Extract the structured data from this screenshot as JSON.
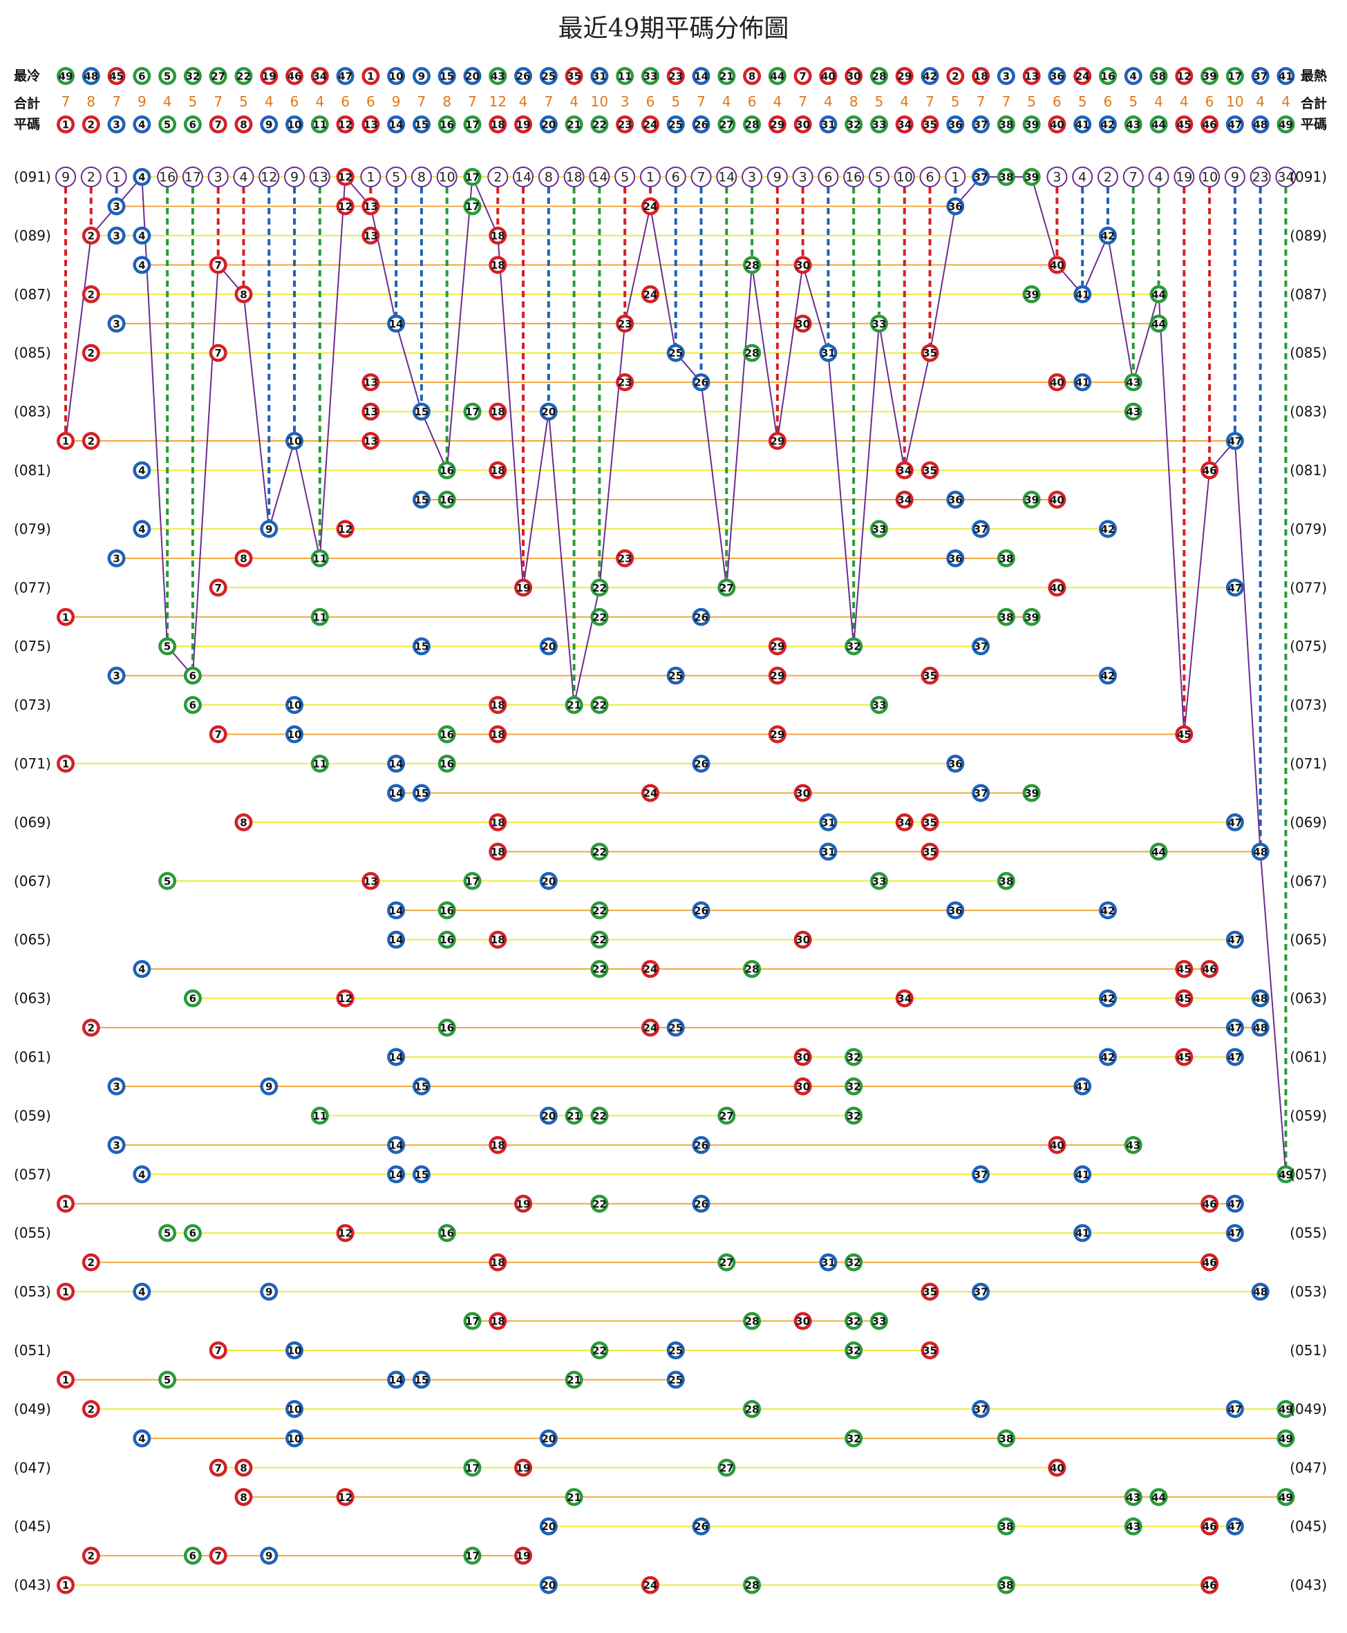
{
  "title": "最近49期平碼分佈圖",
  "labels": {
    "coldest": "最冷",
    "hottest": "最熱",
    "total": "合計",
    "regular": "平碼"
  },
  "colors": {
    "red": "#d61f26",
    "blue": "#1e62b8",
    "green": "#2a9a3a",
    "purple": "#6a2c91",
    "count_orange": "#e07818",
    "line_yellow": "#ecec3c",
    "line_orange": "#f2a83a"
  },
  "chart_data": {
    "type": "table",
    "hot_cold_order": [
      49,
      48,
      45,
      6,
      5,
      32,
      27,
      22,
      19,
      46,
      34,
      47,
      1,
      10,
      9,
      15,
      20,
      43,
      26,
      25,
      35,
      31,
      11,
      33,
      23,
      14,
      21,
      8,
      44,
      7,
      40,
      30,
      28,
      29,
      42,
      2,
      18,
      3,
      13,
      36,
      24,
      16,
      4,
      38,
      12,
      39,
      17,
      37,
      41
    ],
    "totals": [
      7,
      8,
      7,
      9,
      4,
      5,
      7,
      5,
      4,
      6,
      4,
      6,
      6,
      9,
      7,
      8,
      7,
      12,
      4,
      7,
      4,
      10,
      3,
      6,
      5,
      7,
      4,
      6,
      4,
      7,
      4,
      8,
      5,
      4,
      7,
      5,
      7,
      7,
      5,
      6,
      5,
      6,
      5,
      4,
      4,
      6,
      10,
      4,
      4
    ],
    "numbers": [
      1,
      2,
      3,
      4,
      5,
      6,
      7,
      8,
      9,
      10,
      11,
      12,
      13,
      14,
      15,
      16,
      17,
      18,
      19,
      20,
      21,
      22,
      23,
      24,
      25,
      26,
      27,
      28,
      29,
      30,
      31,
      32,
      33,
      34,
      35,
      36,
      37,
      38,
      39,
      40,
      41,
      42,
      43,
      44,
      45,
      46,
      47,
      48,
      49
    ],
    "current_missing": [
      9,
      2,
      1,
      4,
      16,
      17,
      3,
      4,
      12,
      9,
      13,
      12,
      1,
      5,
      8,
      10,
      17,
      2,
      14,
      8,
      18,
      14,
      5,
      1,
      6,
      7,
      14,
      3,
      9,
      3,
      6,
      16,
      5,
      10,
      6,
      1,
      37,
      38,
      39,
      3,
      4,
      2,
      7,
      4,
      19,
      10,
      9,
      23,
      34
    ],
    "current_missing_period": "(091)",
    "periods": [
      {
        "label": "(091)",
        "nums": [
          4,
          12,
          17,
          37,
          38,
          39
        ]
      },
      {
        "label": "",
        "nums": [
          3,
          12,
          13,
          17,
          24,
          36
        ]
      },
      {
        "label": "(089)",
        "nums": [
          2,
          3,
          4,
          13,
          18,
          42
        ]
      },
      {
        "label": "",
        "nums": [
          4,
          7,
          18,
          28,
          30,
          40
        ]
      },
      {
        "label": "(087)",
        "nums": [
          2,
          8,
          24,
          39,
          41,
          44
        ]
      },
      {
        "label": "",
        "nums": [
          3,
          14,
          23,
          30,
          33,
          44
        ]
      },
      {
        "label": "(085)",
        "nums": [
          2,
          7,
          25,
          28,
          31,
          35
        ]
      },
      {
        "label": "",
        "nums": [
          13,
          23,
          26,
          40,
          41,
          43
        ]
      },
      {
        "label": "(083)",
        "nums": [
          13,
          15,
          17,
          18,
          20,
          43
        ]
      },
      {
        "label": "",
        "nums": [
          1,
          2,
          10,
          13,
          29,
          47
        ]
      },
      {
        "label": "(081)",
        "nums": [
          4,
          16,
          18,
          34,
          35,
          46
        ]
      },
      {
        "label": "",
        "nums": [
          15,
          16,
          34,
          36,
          39,
          40
        ]
      },
      {
        "label": "(079)",
        "nums": [
          4,
          9,
          12,
          33,
          37,
          42
        ]
      },
      {
        "label": "",
        "nums": [
          3,
          8,
          11,
          23,
          36,
          38
        ]
      },
      {
        "label": "(077)",
        "nums": [
          7,
          19,
          22,
          27,
          40,
          47
        ]
      },
      {
        "label": "",
        "nums": [
          1,
          11,
          22,
          26,
          38,
          39
        ]
      },
      {
        "label": "(075)",
        "nums": [
          5,
          15,
          20,
          29,
          32,
          37
        ]
      },
      {
        "label": "",
        "nums": [
          3,
          6,
          25,
          29,
          35,
          42
        ]
      },
      {
        "label": "(073)",
        "nums": [
          6,
          10,
          18,
          21,
          22,
          33
        ]
      },
      {
        "label": "",
        "nums": [
          7,
          10,
          16,
          18,
          29,
          45
        ]
      },
      {
        "label": "(071)",
        "nums": [
          1,
          11,
          14,
          16,
          26,
          36
        ]
      },
      {
        "label": "",
        "nums": [
          14,
          15,
          24,
          30,
          37,
          39
        ]
      },
      {
        "label": "(069)",
        "nums": [
          8,
          18,
          31,
          34,
          35,
          47
        ]
      },
      {
        "label": "",
        "nums": [
          18,
          22,
          31,
          35,
          44,
          48
        ]
      },
      {
        "label": "(067)",
        "nums": [
          5,
          13,
          17,
          20,
          33,
          38
        ]
      },
      {
        "label": "",
        "nums": [
          14,
          16,
          22,
          26,
          36,
          42
        ]
      },
      {
        "label": "(065)",
        "nums": [
          14,
          16,
          18,
          22,
          30,
          47
        ]
      },
      {
        "label": "",
        "nums": [
          4,
          22,
          24,
          28,
          45,
          46
        ]
      },
      {
        "label": "(063)",
        "nums": [
          6,
          12,
          34,
          42,
          45,
          48
        ]
      },
      {
        "label": "",
        "nums": [
          2,
          16,
          24,
          25,
          47,
          48
        ]
      },
      {
        "label": "(061)",
        "nums": [
          14,
          30,
          32,
          42,
          45,
          47
        ]
      },
      {
        "label": "",
        "nums": [
          3,
          9,
          15,
          30,
          32,
          41
        ]
      },
      {
        "label": "(059)",
        "nums": [
          11,
          20,
          21,
          22,
          27,
          32
        ]
      },
      {
        "label": "",
        "nums": [
          3,
          14,
          18,
          26,
          40,
          43
        ]
      },
      {
        "label": "(057)",
        "nums": [
          4,
          14,
          15,
          37,
          41,
          49
        ]
      },
      {
        "label": "",
        "nums": [
          1,
          19,
          22,
          26,
          46,
          47
        ]
      },
      {
        "label": "(055)",
        "nums": [
          5,
          6,
          12,
          16,
          41,
          47
        ]
      },
      {
        "label": "",
        "nums": [
          2,
          18,
          27,
          31,
          32,
          46
        ]
      },
      {
        "label": "(053)",
        "nums": [
          1,
          4,
          9,
          35,
          37,
          48
        ]
      },
      {
        "label": "",
        "nums": [
          17,
          18,
          28,
          30,
          32,
          33
        ]
      },
      {
        "label": "(051)",
        "nums": [
          7,
          10,
          22,
          25,
          32,
          35
        ]
      },
      {
        "label": "",
        "nums": [
          1,
          5,
          14,
          15,
          21,
          25
        ]
      },
      {
        "label": "(049)",
        "nums": [
          2,
          10,
          28,
          37,
          47,
          49
        ]
      },
      {
        "label": "",
        "nums": [
          4,
          10,
          20,
          32,
          38,
          49
        ]
      },
      {
        "label": "(047)",
        "nums": [
          7,
          8,
          17,
          19,
          27,
          40
        ]
      },
      {
        "label": "",
        "nums": [
          8,
          12,
          21,
          43,
          44,
          49
        ]
      },
      {
        "label": "(045)",
        "nums": [
          20,
          26,
          38,
          43,
          46,
          47
        ]
      },
      {
        "label": "",
        "nums": [
          2,
          6,
          7,
          9,
          17,
          19
        ]
      },
      {
        "label": "(043)",
        "nums": [
          1,
          20,
          24,
          28,
          38,
          46
        ]
      }
    ]
  }
}
